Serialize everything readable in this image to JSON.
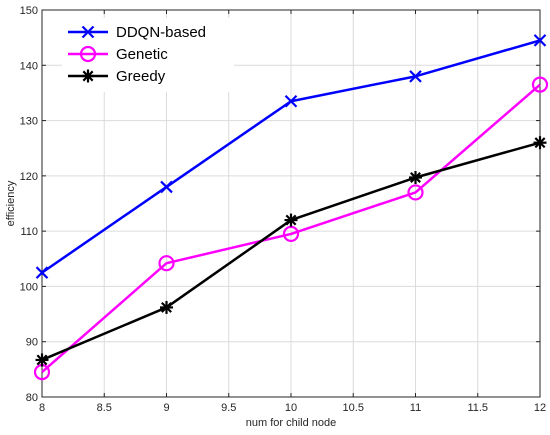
{
  "chart_data": {
    "type": "line",
    "xlabel": "num for child node",
    "ylabel": "efficiency",
    "xlim": [
      8,
      12
    ],
    "ylim": [
      80,
      150
    ],
    "x_ticks": [
      8,
      8.5,
      9,
      9.5,
      10,
      10.5,
      11,
      11.5,
      12
    ],
    "y_ticks": [
      80,
      90,
      100,
      110,
      120,
      130,
      140,
      150
    ],
    "grid": true,
    "legend_position": "top-left",
    "series": [
      {
        "name": "DDQN-based",
        "color": "#0000ff",
        "marker": "x",
        "x": [
          8,
          9,
          10,
          11,
          12
        ],
        "values": [
          102.5,
          118,
          133.5,
          138,
          144.5
        ]
      },
      {
        "name": "Genetic",
        "color": "#ff00ff",
        "marker": "circle",
        "x": [
          8,
          9,
          10,
          11,
          12
        ],
        "values": [
          84.5,
          104.2,
          109.5,
          117,
          136.5
        ]
      },
      {
        "name": "Greedy",
        "color": "#000000",
        "marker": "asterisk",
        "x": [
          8,
          9,
          10,
          11,
          12
        ],
        "values": [
          86.7,
          96.2,
          112,
          119.7,
          126
        ]
      }
    ]
  }
}
